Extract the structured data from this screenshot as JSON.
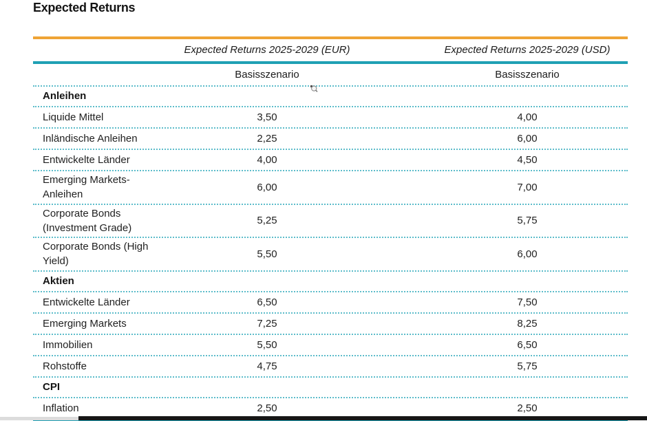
{
  "page": {
    "title": "Expected Returns"
  },
  "table": {
    "col_headers": [
      "Expected Returns 2025-2029 (EUR)",
      "Expected Returns 2025-2029 (USD)"
    ],
    "sub_headers": [
      "Basisszenario",
      "Basisszenario"
    ],
    "sections": [
      {
        "name": "Anleihen",
        "rows": [
          {
            "label": "Liquide Mittel",
            "eur": "3,50",
            "usd": "4,00"
          },
          {
            "label": "Inländische Anleihen",
            "eur": "2,25",
            "usd": "6,00"
          },
          {
            "label": "Entwickelte Länder",
            "eur": "4,00",
            "usd": "4,50"
          },
          {
            "label": "Emerging Markets-Anleihen",
            "eur": "6,00",
            "usd": "7,00"
          },
          {
            "label": "Corporate Bonds (Investment Grade)",
            "eur": "5,25",
            "usd": "5,75"
          },
          {
            "label": "Corporate Bonds (High Yield)",
            "eur": "5,50",
            "usd": "6,00"
          }
        ]
      },
      {
        "name": "Aktien",
        "rows": [
          {
            "label": "Entwickelte Länder",
            "eur": "6,50",
            "usd": "7,50"
          },
          {
            "label": "Emerging Markets",
            "eur": "7,25",
            "usd": "8,25"
          },
          {
            "label": "Immobilien",
            "eur": "5,50",
            "usd": "6,50"
          },
          {
            "label": "Rohstoffe",
            "eur": "4,75",
            "usd": "5,75"
          }
        ]
      },
      {
        "name": "CPI",
        "rows": [
          {
            "label": "Inflation",
            "eur": "2,50",
            "usd": "2,50"
          }
        ]
      }
    ]
  },
  "icons": {
    "zoom_cursor": "magnifier-cursor"
  },
  "colors": {
    "accent_orange": "#EFA436",
    "accent_teal": "#1FA0B4",
    "divider_teal": "#5cbcca",
    "text": "#1f1f1f",
    "bottom_bar_black": "#161616",
    "bottom_bar_gray": "#dcdcdc"
  }
}
